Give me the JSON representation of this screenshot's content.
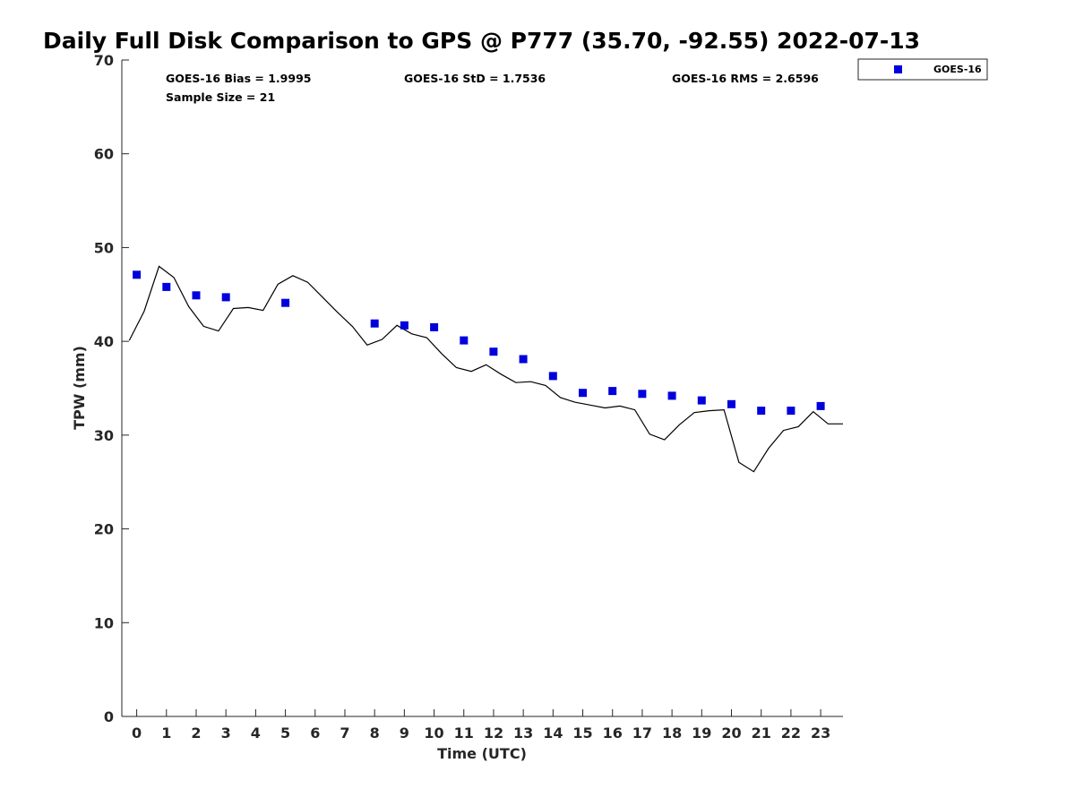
{
  "chart_data": {
    "type": "scatter",
    "title": "Daily Full Disk Comparison to GPS @ P777 (35.70, -92.55) 2022-07-13",
    "xlabel": "Time (UTC)",
    "ylabel": "TPW (mm)",
    "xlim": [
      -0.5,
      23.75
    ],
    "ylim": [
      0,
      70
    ],
    "xticks": [
      0,
      1,
      2,
      3,
      4,
      5,
      6,
      7,
      8,
      9,
      10,
      11,
      12,
      13,
      14,
      15,
      16,
      17,
      18,
      19,
      20,
      21,
      22,
      23
    ],
    "yticks": [
      0,
      10,
      20,
      30,
      40,
      50,
      60,
      70
    ],
    "grid": false,
    "legend_position": "top-right, outside plot",
    "stats": {
      "bias": "GOES-16 Bias = 1.9995",
      "std": "GOES-16 StD = 1.7536",
      "rms": "GOES-16 RMS = 2.6596",
      "sample": "Sample Size = 21"
    },
    "series": [
      {
        "name": "GOES-16",
        "kind": "scatter",
        "marker": "square",
        "color": "#0000dd",
        "x": [
          0,
          1,
          2,
          3,
          5,
          8,
          9,
          10,
          11,
          12,
          13,
          14,
          15,
          16,
          17,
          18,
          19,
          20,
          21,
          22,
          23
        ],
        "y": [
          47.1,
          45.8,
          44.9,
          44.7,
          44.1,
          41.9,
          41.7,
          41.5,
          40.1,
          38.9,
          38.1,
          36.3,
          34.5,
          34.7,
          34.4,
          34.2,
          33.7,
          33.3,
          32.6,
          32.6,
          33.1
        ]
      },
      {
        "kind": "line",
        "color": "#000000",
        "x": [
          -0.25,
          0.25,
          0.75,
          1.25,
          1.75,
          2.25,
          2.75,
          3.25,
          3.75,
          4.25,
          4.75,
          5.25,
          5.75,
          6.25,
          6.75,
          7.25,
          7.75,
          8.25,
          8.75,
          9.25,
          9.75,
          10.25,
          10.75,
          11.25,
          11.75,
          12.25,
          12.75,
          13.25,
          13.75,
          14.25,
          14.75,
          15.25,
          15.75,
          16.25,
          16.75,
          17.25,
          17.75,
          18.25,
          18.75,
          19.25,
          19.75,
          20.25,
          20.75,
          21.25,
          21.75,
          22.25,
          22.75,
          23.25,
          23.75
        ],
        "y": [
          40.1,
          43.2,
          48.0,
          46.8,
          43.7,
          41.6,
          41.1,
          43.5,
          43.6,
          43.3,
          46.1,
          47.0,
          46.3,
          44.7,
          43.1,
          41.6,
          39.6,
          40.2,
          41.7,
          40.8,
          40.4,
          38.7,
          37.2,
          36.8,
          37.5,
          36.5,
          35.6,
          35.7,
          35.3,
          34.0,
          33.5,
          33.2,
          32.9,
          33.1,
          32.7,
          30.1,
          29.5,
          31.1,
          32.4,
          32.6,
          32.7,
          27.1,
          26.1,
          28.6,
          30.5,
          30.9,
          32.5,
          31.2,
          31.2
        ]
      }
    ]
  }
}
